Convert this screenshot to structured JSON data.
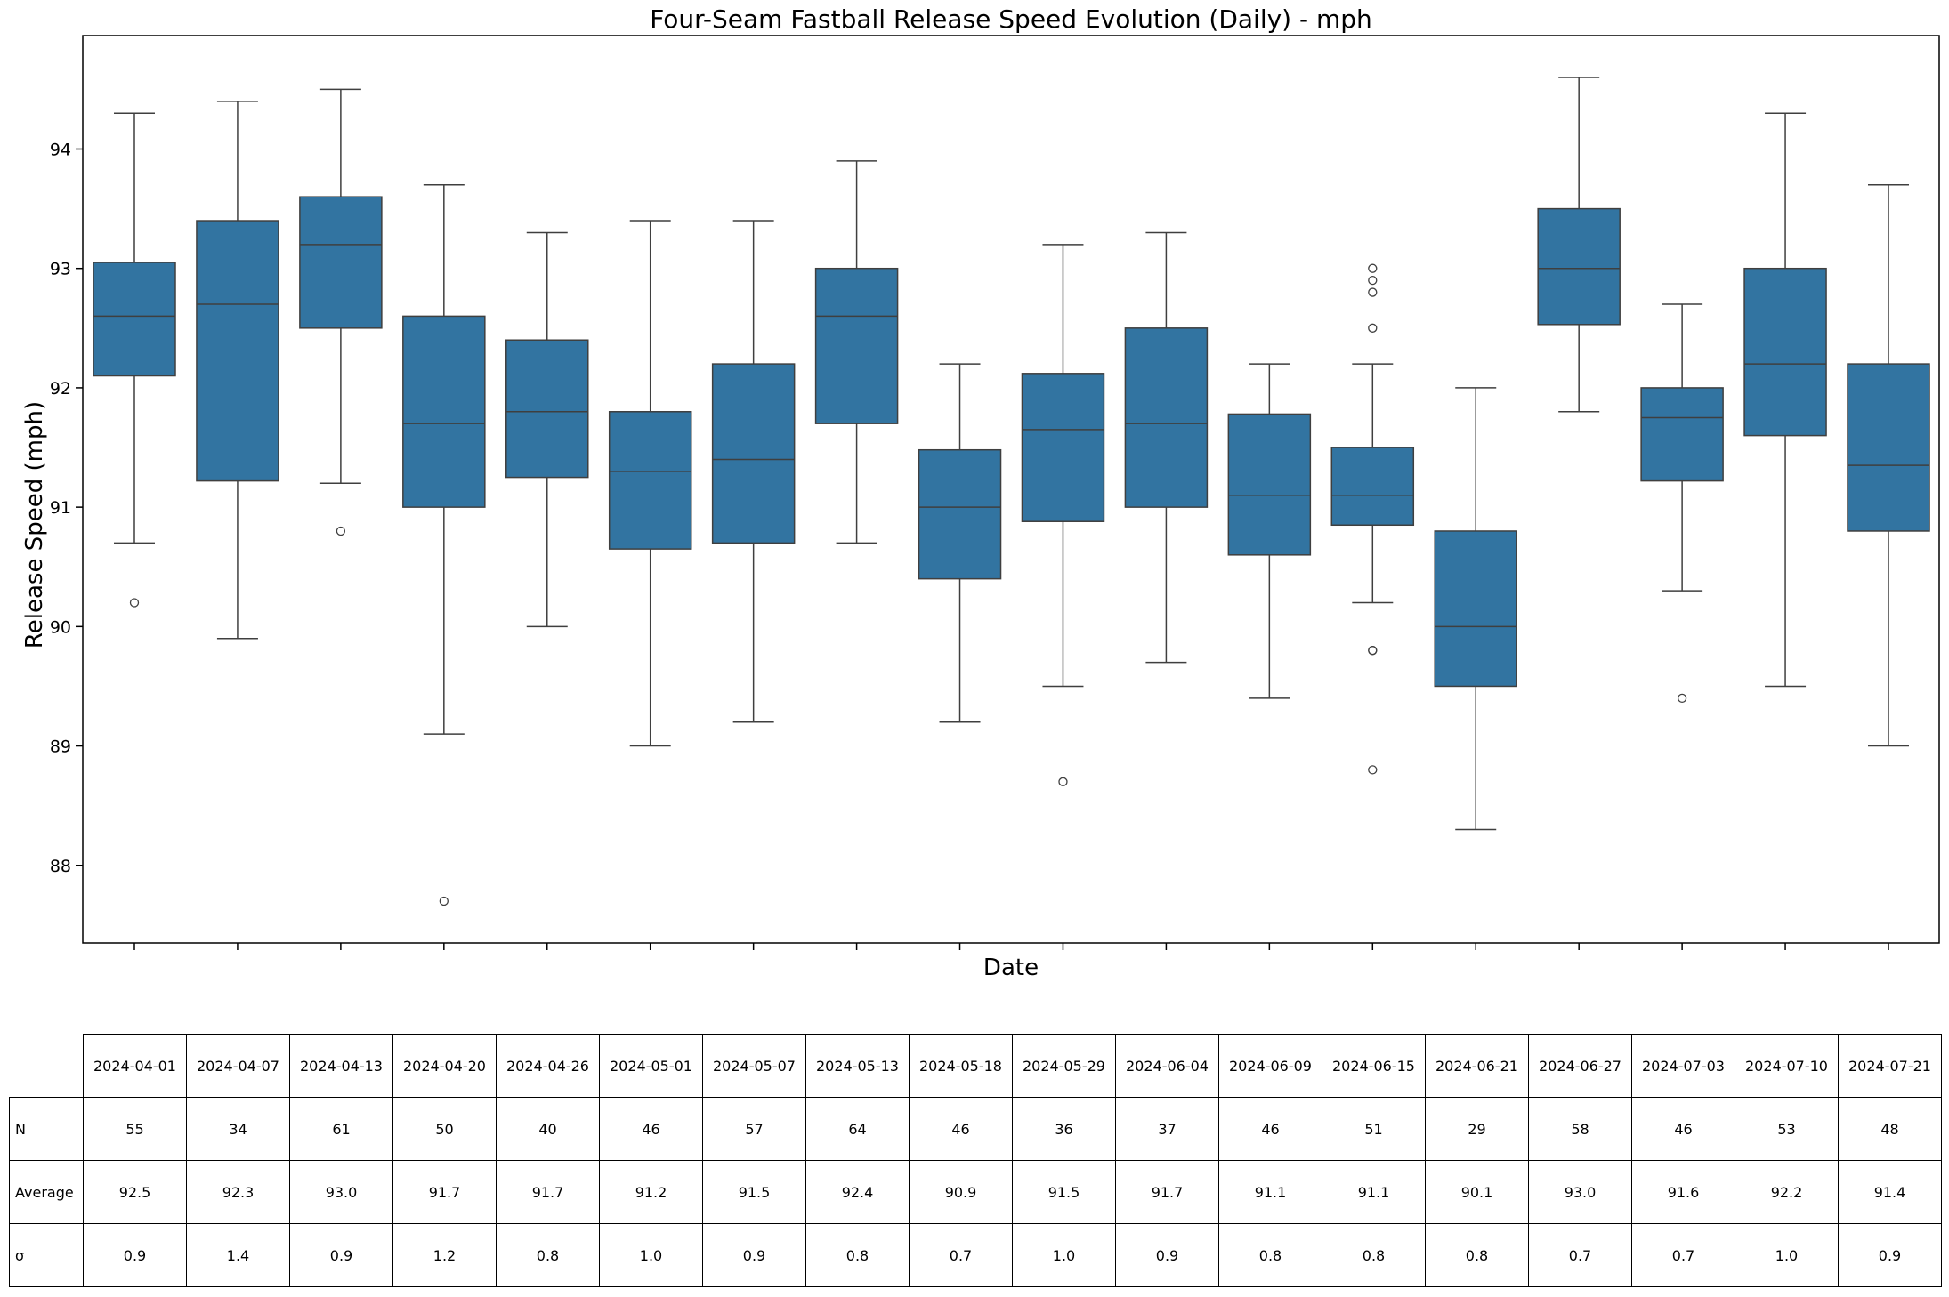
{
  "chart_data": {
    "type": "box",
    "title": "Four-Seam Fastball Release Speed Evolution (Daily) - mph",
    "xlabel": "Date",
    "ylabel": "Release Speed (mph)",
    "ylim": [
      87.35,
      94.95
    ],
    "yticks": [
      88,
      89,
      90,
      91,
      92,
      93,
      94
    ],
    "color": "#3274a1",
    "categories": [
      "2024-04-01",
      "2024-04-07",
      "2024-04-13",
      "2024-04-20",
      "2024-04-26",
      "2024-05-01",
      "2024-05-07",
      "2024-05-13",
      "2024-05-18",
      "2024-05-29",
      "2024-06-04",
      "2024-06-09",
      "2024-06-15",
      "2024-06-21",
      "2024-06-27",
      "2024-07-03",
      "2024-07-10",
      "2024-07-21"
    ],
    "boxes": [
      {
        "whislo": 90.7,
        "q1": 92.1,
        "med": 92.6,
        "q3": 93.05,
        "whishi": 94.3,
        "fliers": [
          90.2
        ]
      },
      {
        "whislo": 89.9,
        "q1": 91.22,
        "med": 92.7,
        "q3": 93.4,
        "whishi": 94.4,
        "fliers": []
      },
      {
        "whislo": 91.2,
        "q1": 92.5,
        "med": 93.2,
        "q3": 93.6,
        "whishi": 94.5,
        "fliers": [
          90.8
        ]
      },
      {
        "whislo": 89.1,
        "q1": 91.0,
        "med": 91.7,
        "q3": 92.6,
        "whishi": 93.7,
        "fliers": [
          87.7
        ]
      },
      {
        "whislo": 90.0,
        "q1": 91.25,
        "med": 91.8,
        "q3": 92.4,
        "whishi": 93.3,
        "fliers": []
      },
      {
        "whislo": 89.0,
        "q1": 90.65,
        "med": 91.3,
        "q3": 91.8,
        "whishi": 93.4,
        "fliers": []
      },
      {
        "whislo": 89.2,
        "q1": 90.7,
        "med": 91.4,
        "q3": 92.2,
        "whishi": 93.4,
        "fliers": []
      },
      {
        "whislo": 90.7,
        "q1": 91.7,
        "med": 92.6,
        "q3": 93.0,
        "whishi": 93.9,
        "fliers": []
      },
      {
        "whislo": 89.2,
        "q1": 90.4,
        "med": 91.0,
        "q3": 91.48,
        "whishi": 92.2,
        "fliers": []
      },
      {
        "whislo": 89.5,
        "q1": 90.88,
        "med": 91.65,
        "q3": 92.12,
        "whishi": 93.2,
        "fliers": [
          88.7
        ]
      },
      {
        "whislo": 89.7,
        "q1": 91.0,
        "med": 91.7,
        "q3": 92.5,
        "whishi": 93.3,
        "fliers": []
      },
      {
        "whislo": 89.4,
        "q1": 90.6,
        "med": 91.1,
        "q3": 91.78,
        "whishi": 92.2,
        "fliers": []
      },
      {
        "whislo": 90.2,
        "q1": 90.85,
        "med": 91.1,
        "q3": 91.5,
        "whishi": 92.2,
        "fliers": [
          93.0,
          92.9,
          92.8,
          92.5,
          89.8,
          89.8,
          88.8
        ]
      },
      {
        "whislo": 88.3,
        "q1": 89.5,
        "med": 90.0,
        "q3": 90.8,
        "whishi": 92.0,
        "fliers": []
      },
      {
        "whislo": 91.8,
        "q1": 92.53,
        "med": 93.0,
        "q3": 93.5,
        "whishi": 94.6,
        "fliers": []
      },
      {
        "whislo": 90.3,
        "q1": 91.22,
        "med": 91.75,
        "q3": 92.0,
        "whishi": 92.7,
        "fliers": [
          89.4
        ]
      },
      {
        "whislo": 89.5,
        "q1": 91.6,
        "med": 92.2,
        "q3": 93.0,
        "whishi": 94.3,
        "fliers": []
      },
      {
        "whislo": 89.0,
        "q1": 90.8,
        "med": 91.35,
        "q3": 92.2,
        "whishi": 93.7,
        "fliers": []
      }
    ]
  },
  "table": {
    "columns": [
      "2024-04-01",
      "2024-04-07",
      "2024-04-13",
      "2024-04-20",
      "2024-04-26",
      "2024-05-01",
      "2024-05-07",
      "2024-05-13",
      "2024-05-18",
      "2024-05-29",
      "2024-06-04",
      "2024-06-09",
      "2024-06-15",
      "2024-06-21",
      "2024-06-27",
      "2024-07-03",
      "2024-07-10",
      "2024-07-21"
    ],
    "rows": [
      {
        "label": "N",
        "values": [
          "55",
          "34",
          "61",
          "50",
          "40",
          "46",
          "57",
          "64",
          "46",
          "36",
          "37",
          "46",
          "51",
          "29",
          "58",
          "46",
          "53",
          "48"
        ]
      },
      {
        "label": "Average",
        "values": [
          "92.5",
          "92.3",
          "93.0",
          "91.7",
          "91.7",
          "91.2",
          "91.5",
          "92.4",
          "90.9",
          "91.5",
          "91.7",
          "91.1",
          "91.1",
          "90.1",
          "93.0",
          "91.6",
          "92.2",
          "91.4"
        ]
      },
      {
        "label": "σ",
        "values": [
          "0.9",
          "1.4",
          "0.9",
          "1.2",
          "0.8",
          "1.0",
          "0.9",
          "0.8",
          "0.7",
          "1.0",
          "0.9",
          "0.8",
          "0.8",
          "0.8",
          "0.7",
          "0.7",
          "1.0",
          "0.9"
        ]
      }
    ]
  }
}
